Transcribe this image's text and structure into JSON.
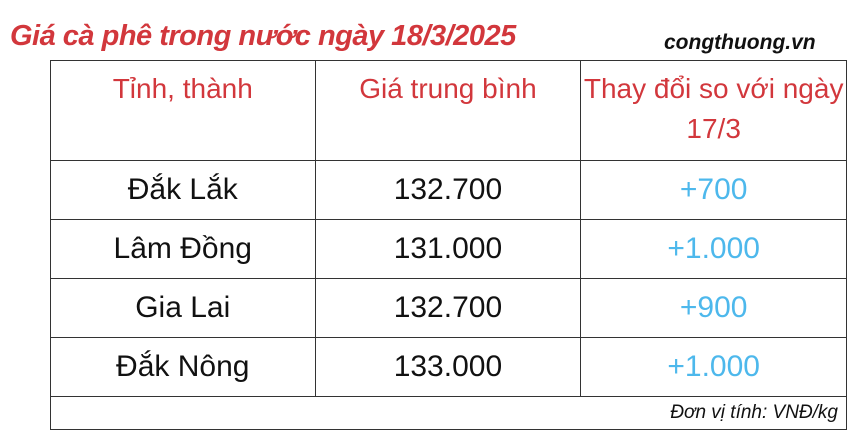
{
  "title": "Giá cà phê trong nước ngày 18/3/2025",
  "source": "congthuong.vn",
  "table": {
    "headers": [
      "Tỉnh, thành",
      "Giá trung bình",
      "Thay đổi so với ngày 17/3"
    ],
    "rows": [
      {
        "province": "Đắk Lắk",
        "price": "132.700",
        "change": "+700"
      },
      {
        "province": "Lâm Đồng",
        "price": "131.000",
        "change": "+1.000"
      },
      {
        "province": "Gia Lai",
        "price": "132.700",
        "change": "+900"
      },
      {
        "province": "Đắk Nông",
        "price": "133.000",
        "change": "+1.000"
      }
    ],
    "unit_note": "Đơn vị tính: VNĐ/kg"
  },
  "colors": {
    "header": "#d2373c",
    "change": "#4db8ec",
    "text": "#111111"
  }
}
